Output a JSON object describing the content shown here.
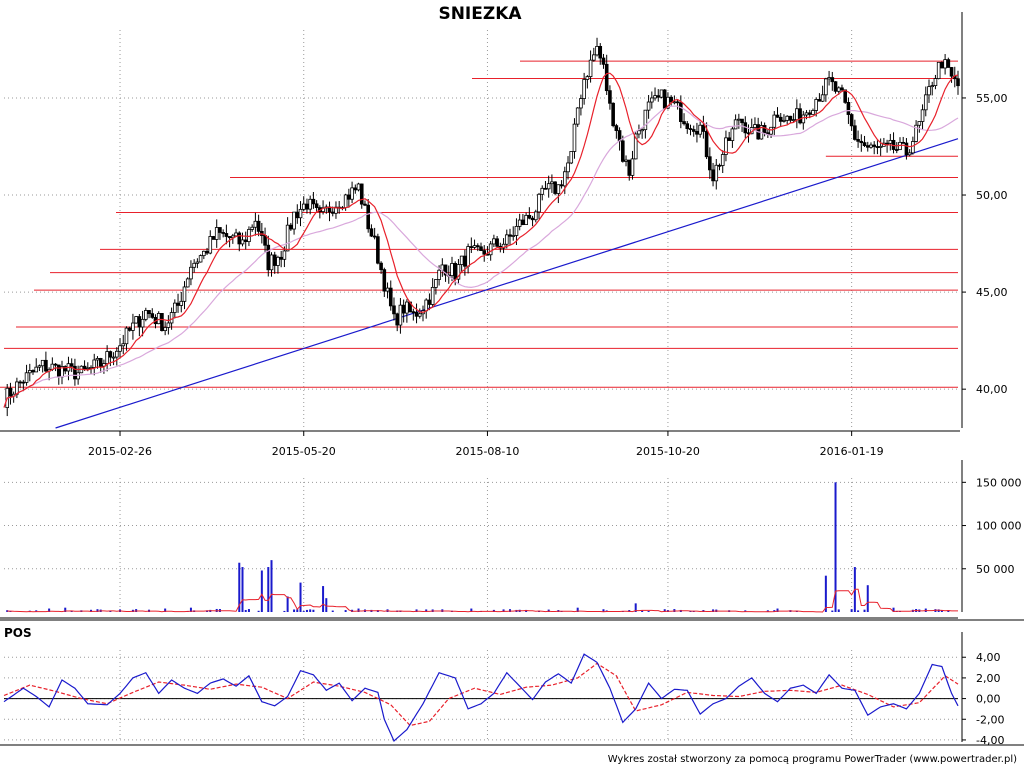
{
  "title": "SNIEZKA",
  "footer": "Wykres został stworzony za pomocą programu PowerTrader (www.powertrader.pl)",
  "colors": {
    "candle": "#000000",
    "ma_fast": "#e8212b",
    "ma_slow": "#d9a8dc",
    "level_line": "#e8212b",
    "trend_line": "#1a1acc",
    "volume_bar": "#1a1acc",
    "volume_ma": "#e8212b",
    "pos_line": "#1a1acc",
    "pos_signal": "#e8212b",
    "grid": "#9a9a9a"
  },
  "chart_data": [
    {
      "type": "candlestick",
      "title": "SNIEZKA",
      "x_tick_labels": [
        "2015-02-26",
        "2015-05-20",
        "2015-08-10",
        "2015-10-20",
        "2016-01-19"
      ],
      "x_tick_index": [
        36,
        93,
        150,
        206,
        263
      ],
      "n_sessions": 296,
      "y_tick_labels": [
        "40,00",
        "45,00",
        "50,00",
        "55,00"
      ],
      "y_ticks": [
        40,
        45,
        50,
        55
      ],
      "ylim": [
        38,
        58.5
      ],
      "grid": true,
      "horizontal_levels": [
        40.1,
        42.1,
        43.2,
        45.1,
        46.0,
        47.2,
        49.1,
        50.9,
        56.0,
        56.9
      ],
      "support_line": {
        "value": 52.0,
        "from_index": 255,
        "to_index": 296
      },
      "trend_line": {
        "from_index": 16,
        "from_value": 38.0,
        "to_index": 296,
        "to_value": 52.9
      },
      "close_path": [
        [
          0,
          39.5
        ],
        [
          6,
          40.5
        ],
        [
          12,
          41.2
        ],
        [
          18,
          41.0
        ],
        [
          24,
          40.8
        ],
        [
          30,
          41.3
        ],
        [
          36,
          42.3
        ],
        [
          40,
          43.2
        ],
        [
          44,
          44.0
        ],
        [
          50,
          43.3
        ],
        [
          54,
          44.3
        ],
        [
          58,
          46.4
        ],
        [
          62,
          47.0
        ],
        [
          66,
          48.0
        ],
        [
          70,
          47.8
        ],
        [
          74,
          47.5
        ],
        [
          78,
          48.8
        ],
        [
          82,
          46.5
        ],
        [
          86,
          47.0
        ],
        [
          90,
          49.0
        ],
        [
          94,
          49.6
        ],
        [
          98,
          48.8
        ],
        [
          102,
          49.5
        ],
        [
          106,
          49.9
        ],
        [
          110,
          50.4
        ],
        [
          113,
          48.5
        ],
        [
          115,
          47.5
        ],
        [
          118,
          45.5
        ],
        [
          121,
          43.5
        ],
        [
          124,
          44.2
        ],
        [
          127,
          43.8
        ],
        [
          130,
          44.3
        ],
        [
          133,
          45.0
        ],
        [
          136,
          46.4
        ],
        [
          140,
          46.0
        ],
        [
          144,
          47.0
        ],
        [
          148,
          46.9
        ],
        [
          152,
          47.4
        ],
        [
          156,
          47.6
        ],
        [
          160,
          48.5
        ],
        [
          164,
          49.0
        ],
        [
          168,
          50.2
        ],
        [
          172,
          50.4
        ],
        [
          176,
          52.0
        ],
        [
          178,
          54.5
        ],
        [
          180,
          56.0
        ],
        [
          182,
          56.8
        ],
        [
          184,
          57.6
        ],
        [
          186,
          56.5
        ],
        [
          188,
          54.5
        ],
        [
          190,
          53.5
        ],
        [
          192,
          52.0
        ],
        [
          194,
          51.2
        ],
        [
          196,
          53.0
        ],
        [
          200,
          54.5
        ],
        [
          204,
          55.0
        ],
        [
          208,
          54.6
        ],
        [
          212,
          53.8
        ],
        [
          216,
          53.5
        ],
        [
          220,
          51.0
        ],
        [
          224,
          52.5
        ],
        [
          228,
          54.0
        ],
        [
          232,
          53.2
        ],
        [
          236,
          53.2
        ],
        [
          240,
          54.3
        ],
        [
          244,
          53.8
        ],
        [
          248,
          54.2
        ],
        [
          252,
          55.0
        ],
        [
          256,
          55.8
        ],
        [
          260,
          55.0
        ],
        [
          264,
          53.0
        ],
        [
          268,
          52.4
        ],
        [
          272,
          52.3
        ],
        [
          276,
          52.4
        ],
        [
          280,
          52.2
        ],
        [
          284,
          53.6
        ],
        [
          288,
          55.9
        ],
        [
          291,
          56.9
        ],
        [
          294,
          56.0
        ],
        [
          296,
          55.6
        ]
      ]
    },
    {
      "type": "bar",
      "series_name": "volume",
      "y_tick_labels": [
        "50 000",
        "100 000",
        "150 000"
      ],
      "y_ticks": [
        50000,
        100000,
        150000
      ],
      "ylim": [
        0,
        155000
      ],
      "spikes": [
        [
          14,
          4000
        ],
        [
          19,
          5000
        ],
        [
          36,
          3000
        ],
        [
          50,
          4000
        ],
        [
          58,
          5000
        ],
        [
          66,
          3500
        ],
        [
          73,
          57000
        ],
        [
          74,
          52000
        ],
        [
          80,
          48000
        ],
        [
          82,
          52000
        ],
        [
          83,
          60000
        ],
        [
          88,
          18000
        ],
        [
          92,
          34000
        ],
        [
          99,
          30000
        ],
        [
          100,
          16000
        ],
        [
          110,
          4000
        ],
        [
          128,
          3000
        ],
        [
          145,
          4000
        ],
        [
          155,
          3000
        ],
        [
          178,
          5000
        ],
        [
          196,
          10000
        ],
        [
          220,
          3000
        ],
        [
          240,
          4000
        ],
        [
          255,
          42000
        ],
        [
          258,
          150000
        ],
        [
          264,
          52000
        ],
        [
          268,
          31000
        ],
        [
          276,
          5000
        ],
        [
          286,
          4000
        ],
        [
          290,
          3000
        ]
      ]
    },
    {
      "type": "line",
      "series_name": "POS",
      "label": "POS",
      "y_tick_labels": [
        "4,00",
        "2,00",
        "0,00",
        "-2,00",
        "-4,00"
      ],
      "y_ticks": [
        4,
        2,
        0,
        -2,
        -4
      ],
      "ylim": [
        -4.2,
        4.7
      ],
      "pos_path": [
        [
          0,
          -0.3
        ],
        [
          6,
          1.0
        ],
        [
          10,
          0.2
        ],
        [
          14,
          -0.8
        ],
        [
          18,
          1.8
        ],
        [
          22,
          1.0
        ],
        [
          26,
          -0.5
        ],
        [
          32,
          -0.6
        ],
        [
          36,
          0.5
        ],
        [
          40,
          2.0
        ],
        [
          44,
          2.5
        ],
        [
          48,
          0.5
        ],
        [
          52,
          1.8
        ],
        [
          56,
          1.0
        ],
        [
          60,
          0.5
        ],
        [
          64,
          1.5
        ],
        [
          68,
          1.9
        ],
        [
          72,
          1.2
        ],
        [
          76,
          2.2
        ],
        [
          80,
          -0.3
        ],
        [
          84,
          -0.7
        ],
        [
          88,
          0.2
        ],
        [
          92,
          2.7
        ],
        [
          96,
          2.3
        ],
        [
          100,
          0.8
        ],
        [
          104,
          1.5
        ],
        [
          108,
          -0.2
        ],
        [
          112,
          1.0
        ],
        [
          116,
          0.6
        ],
        [
          118,
          -2.0
        ],
        [
          121,
          -4.1
        ],
        [
          125,
          -3.0
        ],
        [
          130,
          -0.5
        ],
        [
          135,
          2.5
        ],
        [
          140,
          2.0
        ],
        [
          144,
          -1.0
        ],
        [
          148,
          -0.5
        ],
        [
          152,
          0.5
        ],
        [
          156,
          2.5
        ],
        [
          160,
          1.2
        ],
        [
          164,
          -0.1
        ],
        [
          168,
          1.6
        ],
        [
          172,
          2.4
        ],
        [
          176,
          1.5
        ],
        [
          180,
          4.3
        ],
        [
          184,
          3.5
        ],
        [
          188,
          1.0
        ],
        [
          192,
          -2.3
        ],
        [
          196,
          -1.0
        ],
        [
          200,
          1.5
        ],
        [
          204,
          0.0
        ],
        [
          208,
          0.9
        ],
        [
          212,
          0.8
        ],
        [
          216,
          -1.5
        ],
        [
          220,
          -0.5
        ],
        [
          224,
          0.0
        ],
        [
          228,
          1.2
        ],
        [
          232,
          2.0
        ],
        [
          236,
          0.5
        ],
        [
          240,
          -0.3
        ],
        [
          244,
          1.0
        ],
        [
          248,
          1.3
        ],
        [
          252,
          0.5
        ],
        [
          256,
          2.3
        ],
        [
          260,
          1.0
        ],
        [
          264,
          0.8
        ],
        [
          268,
          -1.6
        ],
        [
          272,
          -0.8
        ],
        [
          276,
          -0.5
        ],
        [
          280,
          -1.0
        ],
        [
          284,
          0.5
        ],
        [
          288,
          3.3
        ],
        [
          291,
          3.1
        ],
        [
          294,
          0.5
        ],
        [
          296,
          -0.7
        ]
      ],
      "signal_path": [
        [
          0,
          0.3
        ],
        [
          8,
          1.3
        ],
        [
          16,
          0.7
        ],
        [
          24,
          0.0
        ],
        [
          32,
          -0.5
        ],
        [
          40,
          0.6
        ],
        [
          48,
          1.6
        ],
        [
          56,
          1.3
        ],
        [
          64,
          0.9
        ],
        [
          72,
          1.4
        ],
        [
          80,
          1.1
        ],
        [
          88,
          0.0
        ],
        [
          96,
          1.6
        ],
        [
          104,
          1.2
        ],
        [
          112,
          0.6
        ],
        [
          120,
          -0.6
        ],
        [
          126,
          -2.6
        ],
        [
          132,
          -2.2
        ],
        [
          138,
          0.0
        ],
        [
          146,
          1.0
        ],
        [
          154,
          0.4
        ],
        [
          162,
          1.1
        ],
        [
          170,
          1.3
        ],
        [
          178,
          2.0
        ],
        [
          184,
          3.4
        ],
        [
          190,
          2.2
        ],
        [
          196,
          -1.2
        ],
        [
          204,
          -0.6
        ],
        [
          212,
          0.6
        ],
        [
          220,
          0.3
        ],
        [
          228,
          0.2
        ],
        [
          236,
          0.7
        ],
        [
          244,
          0.8
        ],
        [
          252,
          0.6
        ],
        [
          260,
          1.3
        ],
        [
          268,
          0.4
        ],
        [
          276,
          -0.8
        ],
        [
          284,
          -0.4
        ],
        [
          292,
          2.2
        ],
        [
          296,
          1.4
        ]
      ]
    }
  ]
}
